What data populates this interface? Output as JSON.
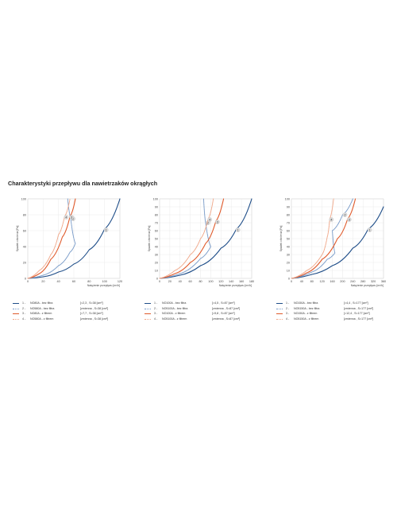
{
  "page": {
    "title": "Charakterystyki przepływu dla nawietrzaków okrągłych"
  },
  "chart_data": [
    {
      "type": "line",
      "xlabel": "Natężenie przepływu [m³/h]",
      "ylabel": "Spadek ciśnienia [Pa]",
      "xlim": [
        0,
        120
      ],
      "ylim": [
        0,
        100
      ],
      "xticks": [
        "0",
        "20",
        "40",
        "60",
        "80",
        "100",
        "120"
      ],
      "yticks": [
        "0",
        "20",
        "40",
        "60",
        "80",
        "100"
      ],
      "grid": true,
      "series": [
        {
          "name": "NO80A - bez filtra",
          "index": "1 -",
          "marker": "1",
          "note": "[=2,3 , S=38 [cm²]",
          "color": "#1f4e89",
          "dash": "solid",
          "x": [
            0,
            20,
            40,
            60,
            80,
            100,
            120
          ],
          "y": [
            0,
            2,
            8,
            18,
            36,
            62,
            100
          ]
        },
        {
          "name": "NO580A - bez filtra",
          "index": "2 -",
          "marker": "2",
          "note": "[zmienna , S=38 [cm²]",
          "color": "#7a9cc9",
          "dash": "dotted",
          "x": [
            0,
            20,
            40,
            55,
            62,
            56,
            52
          ],
          "y": [
            0,
            4,
            16,
            33,
            44,
            75,
            100
          ]
        },
        {
          "name": "NO80A - z filtrem",
          "index": "3 -",
          "marker": "3",
          "note": "[=7,7 , S=38 [cm²]",
          "color": "#e05a2b",
          "dash": "solid",
          "x": [
            0,
            15,
            30,
            45,
            55,
            62
          ],
          "y": [
            0,
            6,
            24,
            52,
            78,
            100
          ]
        },
        {
          "name": "NO580A - z filtrem",
          "index": "4 -",
          "marker": "4",
          "note": "[zmienna , S=38 [cm²]",
          "color": "#f0a88a",
          "dash": "dotted",
          "x": [
            0,
            15,
            30,
            40,
            48,
            55
          ],
          "y": [
            0,
            10,
            30,
            55,
            78,
            100
          ]
        }
      ]
    },
    {
      "type": "line",
      "xlabel": "Natężenie przepływu [m³/h]",
      "ylabel": "Spadek ciśnienia [Pa]",
      "xlim": [
        0,
        180
      ],
      "ylim": [
        0,
        100
      ],
      "xticks": [
        "0",
        "20",
        "40",
        "60",
        "80",
        "100",
        "120",
        "140",
        "160",
        "180"
      ],
      "yticks": [
        "0",
        "10",
        "20",
        "30",
        "40",
        "50",
        "60",
        "70",
        "80",
        "90",
        "100"
      ],
      "grid": true,
      "series": [
        {
          "name": "NO100A - bez filtra",
          "index": "1 -",
          "marker": "1",
          "note": "[=4,5 , S=87 [cm²]",
          "color": "#1f4e89",
          "dash": "solid",
          "x": [
            0,
            40,
            80,
            120,
            150,
            180
          ],
          "y": [
            0,
            4,
            16,
            38,
            62,
            100
          ]
        },
        {
          "name": "NO5100A - bez filtra",
          "index": "2 -",
          "marker": "2",
          "note": "[zmienna , S=87 [cm²]",
          "color": "#7a9cc9",
          "dash": "dotted",
          "x": [
            0,
            40,
            80,
            100,
            90,
            86
          ],
          "y": [
            0,
            6,
            25,
            40,
            70,
            100
          ]
        },
        {
          "name": "NO100A - z filtrem",
          "index": "3 -",
          "marker": "3",
          "note": "[=9,8 , S=87 [cm²]",
          "color": "#e05a2b",
          "dash": "solid",
          "x": [
            0,
            30,
            60,
            90,
            110,
            125
          ],
          "y": [
            0,
            6,
            20,
            44,
            72,
            100
          ]
        },
        {
          "name": "NO5100A - z filtrem",
          "index": "4 -",
          "marker": "4",
          "note": "[zmienna , S=87 [cm²]",
          "color": "#f0a88a",
          "dash": "dotted",
          "x": [
            0,
            30,
            60,
            80,
            95,
            105
          ],
          "y": [
            0,
            10,
            30,
            50,
            75,
            100
          ]
        }
      ]
    },
    {
      "type": "line",
      "xlabel": "Natężenie przepływu [m³/h]",
      "ylabel": "Spadek ciśnienia [Pa]",
      "xlim": [
        0,
        360
      ],
      "ylim": [
        0,
        100
      ],
      "xticks": [
        "0",
        "40",
        "80",
        "120",
        "160",
        "200",
        "240",
        "280",
        "320",
        "360"
      ],
      "yticks": [
        "0",
        "10",
        "20",
        "30",
        "40",
        "50",
        "60",
        "70",
        "80",
        "90",
        "100"
      ],
      "grid": true,
      "series": [
        {
          "name": "NO150A - bez filtra",
          "index": "1 -",
          "marker": "1",
          "note": "[=4,4 , S=177 [cm²]",
          "color": "#1f4e89",
          "dash": "solid",
          "x": [
            0,
            80,
            160,
            240,
            300,
            360
          ],
          "y": [
            0,
            5,
            16,
            38,
            62,
            90
          ]
        },
        {
          "name": "NO5150A - bez filtra",
          "index": "2 -",
          "marker": "2",
          "note": "[zmienna , S=177 [cm²]",
          "color": "#7a9cc9",
          "dash": "dotted",
          "x": [
            0,
            80,
            140,
            170,
            160,
            200,
            240
          ],
          "y": [
            0,
            8,
            24,
            32,
            60,
            80,
            100
          ]
        },
        {
          "name": "NO150A - z filtrem",
          "index": "3 -",
          "marker": "3",
          "note": "[=12,4 , S=177 [cm²]",
          "color": "#e05a2b",
          "dash": "solid",
          "x": [
            0,
            60,
            120,
            180,
            220,
            250
          ],
          "y": [
            0,
            7,
            24,
            50,
            75,
            100
          ]
        },
        {
          "name": "NO5150A - z filtrem",
          "index": "4 -",
          "marker": "4",
          "note": "[zmienna , S=177 [cm²]",
          "color": "#f0a88a",
          "dash": "dotted",
          "x": [
            0,
            60,
            120,
            140,
            150,
            165
          ],
          "y": [
            0,
            10,
            30,
            52,
            75,
            100
          ]
        }
      ]
    }
  ]
}
